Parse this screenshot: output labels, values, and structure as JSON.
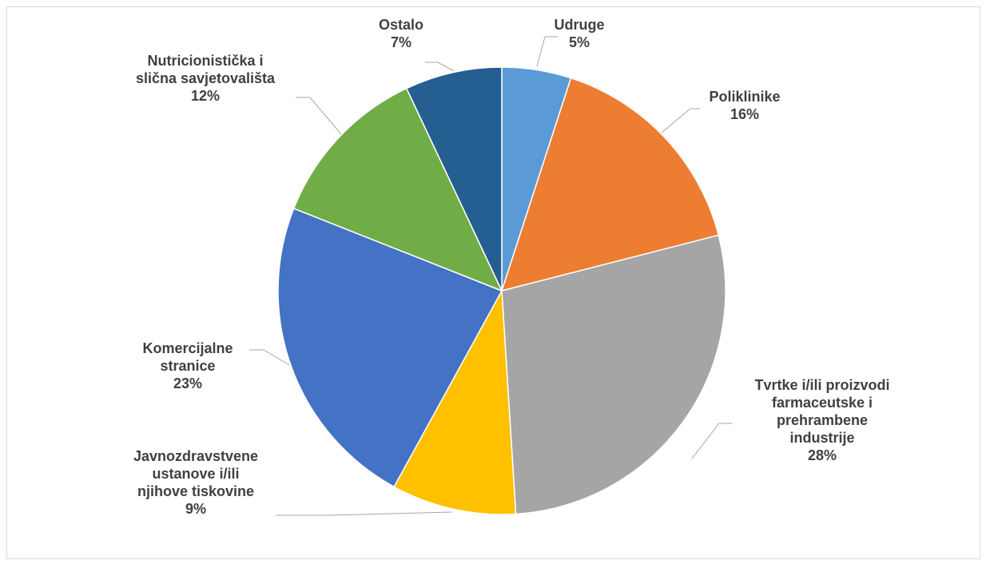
{
  "chart_data": {
    "type": "pie",
    "title": "",
    "slices": [
      {
        "label_lines": [
          "Udruge"
        ],
        "pct_label": "5%",
        "value": 5,
        "color": "#5b9bd5"
      },
      {
        "label_lines": [
          "Poliklinike"
        ],
        "pct_label": "16%",
        "value": 16,
        "color": "#ed7d31"
      },
      {
        "label_lines": [
          "Tvrtke i/ili proizvodi",
          "farmaceutske i",
          "prehrambene",
          "industrije"
        ],
        "pct_label": "28%",
        "value": 28,
        "color": "#a5a5a5"
      },
      {
        "label_lines": [
          "Javnozdravstvene",
          "ustanove i/ili",
          "njihove tiskovine"
        ],
        "pct_label": "9%",
        "value": 9,
        "color": "#ffc000"
      },
      {
        "label_lines": [
          "Komercijalne",
          "stranice"
        ],
        "pct_label": "23%",
        "value": 23,
        "color": "#4472c4"
      },
      {
        "label_lines": [
          "Nutricionistička i",
          "slična savjetovališta"
        ],
        "pct_label": "12%",
        "value": 12,
        "color": "#70ad47"
      },
      {
        "label_lines": [
          "Ostalo"
        ],
        "pct_label": "7%",
        "value": 7,
        "color": "#255e91"
      }
    ]
  }
}
